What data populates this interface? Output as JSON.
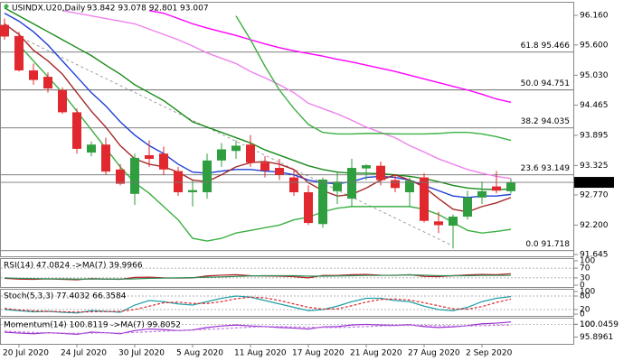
{
  "chart_data": [
    {
      "type": "candlestick",
      "title": "USINDX.U20,Daily",
      "subtitle": "93.842 93.078 92.801 93.007",
      "categories": [
        null,
        "20 Jul 2020",
        null,
        null,
        null,
        "24 Jul 2020",
        null,
        null,
        null,
        "30 Jul 2020",
        null,
        null,
        null,
        "5 Aug 2020",
        null,
        null,
        null,
        "11 Aug 2020",
        null,
        null,
        null,
        "17 Aug 2020",
        null,
        null,
        null,
        "21 Aug 2020",
        null,
        null,
        null,
        "27 Aug 2020",
        null,
        null,
        null,
        "2 Sep 2020",
        null,
        null
      ],
      "open": [
        95.98,
        95.77,
        95.12,
        95.0,
        94.75,
        94.33,
        93.57,
        93.72,
        93.25,
        92.79,
        93.52,
        93.55,
        93.22,
        92.82,
        92.82,
        93.42,
        93.6,
        93.72,
        93.38,
        93.28,
        93.1,
        92.82,
        92.22,
        92.84,
        92.7,
        93.27,
        93.32,
        93.05,
        92.82,
        93.1,
        92.27,
        92.19,
        92.36,
        92.72,
        92.93,
        92.84
      ],
      "high": [
        96.1,
        95.85,
        95.25,
        95.08,
        94.8,
        94.4,
        93.78,
        93.85,
        93.35,
        93.55,
        93.8,
        93.68,
        93.3,
        93.05,
        93.55,
        93.75,
        93.8,
        93.9,
        93.5,
        93.45,
        93.25,
        92.95,
        93.1,
        93.2,
        93.45,
        93.35,
        93.4,
        93.15,
        93.1,
        93.18,
        92.45,
        92.4,
        92.85,
        93.02,
        93.22,
        93.078
      ],
      "low": [
        95.7,
        95.1,
        94.85,
        94.7,
        94.3,
        93.55,
        93.5,
        93.15,
        92.95,
        92.58,
        93.3,
        93.15,
        92.75,
        92.55,
        92.7,
        93.3,
        93.45,
        93.3,
        93.1,
        93.05,
        92.75,
        92.2,
        92.15,
        92.6,
        92.55,
        93.05,
        92.95,
        92.82,
        92.55,
        92.25,
        92.05,
        91.76,
        92.3,
        92.6,
        92.8,
        92.801
      ],
      "close": [
        95.76,
        95.12,
        94.94,
        94.78,
        94.33,
        93.64,
        93.72,
        93.21,
        92.98,
        93.47,
        93.45,
        93.25,
        92.82,
        92.86,
        93.42,
        93.63,
        93.7,
        93.38,
        93.23,
        93.15,
        92.82,
        92.24,
        93.06,
        93.02,
        93.28,
        93.33,
        93.05,
        92.9,
        93.04,
        92.28,
        92.2,
        92.36,
        92.72,
        92.84,
        92.85,
        93.007
      ],
      "up_color": "#2e9e3e",
      "down_color": "#e0282e",
      "series": [
        {
          "color": "#ff00ff",
          "values": [
            null,
            null,
            null,
            null,
            null,
            null,
            null,
            null,
            null,
            null,
            96.25,
            96.2,
            96.1,
            96.0,
            95.92,
            95.85,
            95.78,
            95.7,
            95.62,
            95.55,
            95.49,
            95.44,
            95.39,
            95.33,
            95.28,
            95.22,
            95.16,
            95.1,
            95.03,
            94.96,
            94.89,
            94.82,
            94.75,
            94.67,
            94.58,
            94.52
          ]
        },
        {
          "color": "#ee82ee",
          "values": [
            null,
            null,
            null,
            null,
            96.25,
            96.2,
            96.15,
            96.1,
            96.05,
            96.0,
            95.9,
            95.8,
            95.7,
            95.58,
            95.45,
            95.35,
            95.25,
            95.1,
            94.98,
            94.85,
            94.7,
            94.5,
            94.4,
            94.3,
            94.18,
            94.05,
            93.95,
            93.85,
            93.7,
            93.58,
            93.45,
            93.35,
            93.25,
            93.18,
            93.12,
            93.08
          ]
        },
        {
          "color": "#3cb043",
          "values": [
            null,
            null,
            null,
            null,
            null,
            null,
            null,
            null,
            null,
            null,
            null,
            null,
            null,
            null,
            null,
            null,
            96.15,
            95.7,
            95.2,
            94.75,
            94.4,
            94.1,
            93.95,
            93.92,
            93.92,
            93.93,
            93.93,
            93.92,
            93.92,
            93.92,
            93.93,
            93.95,
            93.95,
            93.92,
            93.87,
            93.8
          ]
        },
        {
          "color": "#3cb043",
          "values": [
            null,
            95.6,
            95.3,
            95.0,
            94.7,
            94.35,
            94.0,
            93.65,
            93.3,
            93.0,
            92.8,
            92.55,
            92.3,
            91.95,
            91.9,
            91.95,
            92.05,
            92.1,
            92.15,
            92.2,
            92.3,
            92.35,
            92.45,
            92.52,
            92.55,
            92.55,
            92.55,
            92.55,
            92.55,
            92.5,
            92.4,
            92.25,
            92.1,
            92.05,
            92.08,
            92.12
          ]
        },
        {
          "color": "#1a8a1a",
          "values": [
            96.3,
            96.15,
            96.0,
            95.85,
            95.7,
            95.55,
            95.4,
            95.22,
            95.05,
            94.85,
            94.7,
            94.55,
            94.35,
            94.15,
            94.05,
            93.95,
            93.85,
            93.75,
            93.62,
            93.52,
            93.42,
            93.32,
            93.25,
            93.2,
            93.18,
            93.18,
            93.17,
            93.15,
            93.12,
            93.08,
            93.02,
            92.95,
            92.9,
            92.88,
            92.87,
            92.88
          ]
        },
        {
          "color": "#1f3fd6",
          "values": [
            96.2,
            96.05,
            95.85,
            95.6,
            95.3,
            95.0,
            94.7,
            94.45,
            94.15,
            93.9,
            93.7,
            93.55,
            93.35,
            93.2,
            93.18,
            93.22,
            93.25,
            93.25,
            93.22,
            93.2,
            93.15,
            93.05,
            93.0,
            92.98,
            93.02,
            93.1,
            93.12,
            93.1,
            93.05,
            92.95,
            92.85,
            92.75,
            92.72,
            92.75,
            92.75,
            92.78
          ]
        },
        {
          "color": "#a52a2a",
          "values": [
            96.0,
            95.8,
            95.5,
            95.3,
            95.05,
            94.7,
            94.35,
            94.05,
            93.7,
            93.45,
            93.35,
            93.3,
            93.2,
            93.05,
            93.02,
            93.15,
            93.3,
            93.38,
            93.4,
            93.35,
            93.25,
            93.0,
            92.85,
            92.75,
            92.78,
            92.9,
            93.05,
            93.15,
            93.05,
            92.92,
            92.7,
            92.5,
            92.45,
            92.55,
            92.62,
            92.72
          ]
        }
      ],
      "fib_levels": [
        {
          "value": 95.466,
          "label": "61.8 95.466"
        },
        {
          "value": 94.751,
          "label": "50.0 94.751"
        },
        {
          "value": 94.035,
          "label": "38.2 94.035"
        },
        {
          "value": 93.149,
          "label": "23.6 93.149"
        },
        {
          "value": 91.718,
          "label": "0.0 91.718"
        }
      ],
      "ylim": [
        91.645,
        96.16
      ],
      "yticks": [
        {
          "value": 96.16,
          "label": "96.160"
        },
        {
          "value": 95.6,
          "label": "95.600"
        },
        {
          "value": 95.03,
          "label": "95.030"
        },
        94.465,
        93.895,
        93.325,
        {
          "value": 92.77,
          "label": "92.770"
        },
        {
          "value": 92.2,
          "label": "92.200"
        },
        91.645
      ]
    },
    {
      "type": "line",
      "title": "RSI(14) 47.0824 ->MA(7) 39.9966",
      "ylim": [
        0,
        100
      ],
      "yticks": [
        100,
        70,
        30,
        0
      ],
      "levels": [
        70,
        30
      ],
      "series": [
        {
          "color": "#b22222",
          "values": [
            28,
            25,
            24,
            26,
            24,
            22,
            27,
            25,
            24,
            32,
            33,
            30,
            29,
            30,
            38,
            41,
            43,
            39,
            38,
            37,
            35,
            30,
            40,
            40,
            43,
            44,
            41,
            40,
            43,
            36,
            35,
            39,
            42,
            44,
            43,
            47.0824
          ]
        },
        {
          "color": "#2e8b57",
          "values": [
            30,
            28,
            27,
            26,
            26,
            25,
            25,
            25,
            25,
            26,
            28,
            29,
            30,
            31,
            33,
            34,
            36,
            38,
            39,
            39,
            39,
            37,
            37,
            38,
            39,
            40,
            40,
            41,
            42,
            41,
            39,
            39,
            39,
            40,
            40,
            39.9966
          ]
        }
      ]
    },
    {
      "type": "line",
      "title": "Stoch(5,3,3) 77.4032 66.3584",
      "ylim": [
        0,
        100
      ],
      "yticks": [
        100,
        80,
        20,
        0
      ],
      "levels": [
        80,
        20
      ],
      "series": [
        {
          "color": "#20a0a8",
          "values": [
            20,
            15,
            10,
            12,
            8,
            5,
            15,
            12,
            8,
            40,
            60,
            55,
            45,
            40,
            55,
            70,
            80,
            75,
            60,
            45,
            30,
            15,
            20,
            35,
            55,
            70,
            70,
            60,
            55,
            35,
            20,
            15,
            30,
            55,
            70,
            77.4032
          ]
        },
        {
          "color": "#e0282e",
          "dashed": true,
          "values": [
            25,
            18,
            14,
            12,
            10,
            9,
            10,
            11,
            12,
            20,
            35,
            50,
            53,
            47,
            47,
            55,
            68,
            75,
            72,
            60,
            45,
            30,
            22,
            23,
            37,
            53,
            65,
            67,
            62,
            50,
            37,
            23,
            22,
            33,
            52,
            66.3584
          ]
        }
      ]
    },
    {
      "type": "line",
      "title": "Momentum(14) 100.8119 ->MA(7) 99.8052",
      "ylim": [
        94.0,
        101.3
      ],
      "yticks": [
        100.0459,
        100,
        95.8961
      ],
      "levels": [
        100
      ],
      "series": [
        {
          "color": "#9b30d0",
          "values": [
            97.5,
            97.2,
            97.0,
            97.3,
            97.1,
            96.8,
            97.5,
            97.3,
            97.0,
            98.0,
            98.5,
            98.3,
            98.0,
            98.2,
            99.0,
            99.5,
            99.8,
            99.5,
            99.3,
            99.0,
            98.8,
            98.5,
            99.2,
            99.3,
            99.8,
            100.0,
            99.8,
            99.7,
            99.9,
            99.3,
            99.0,
            99.2,
            99.6,
            100.2,
            100.4,
            100.8119
          ]
        },
        {
          "color": "#c080e0",
          "dashed": true,
          "values": [
            97.8,
            97.6,
            97.4,
            97.3,
            97.2,
            97.1,
            97.2,
            97.3,
            97.2,
            97.4,
            97.6,
            97.8,
            98.0,
            98.2,
            98.4,
            98.6,
            98.9,
            99.1,
            99.3,
            99.3,
            99.2,
            99.1,
            99.0,
            99.0,
            99.1,
            99.3,
            99.5,
            99.6,
            99.7,
            99.7,
            99.6,
            99.5,
            99.5,
            99.6,
            99.7,
            99.8052
          ]
        }
      ]
    }
  ]
}
